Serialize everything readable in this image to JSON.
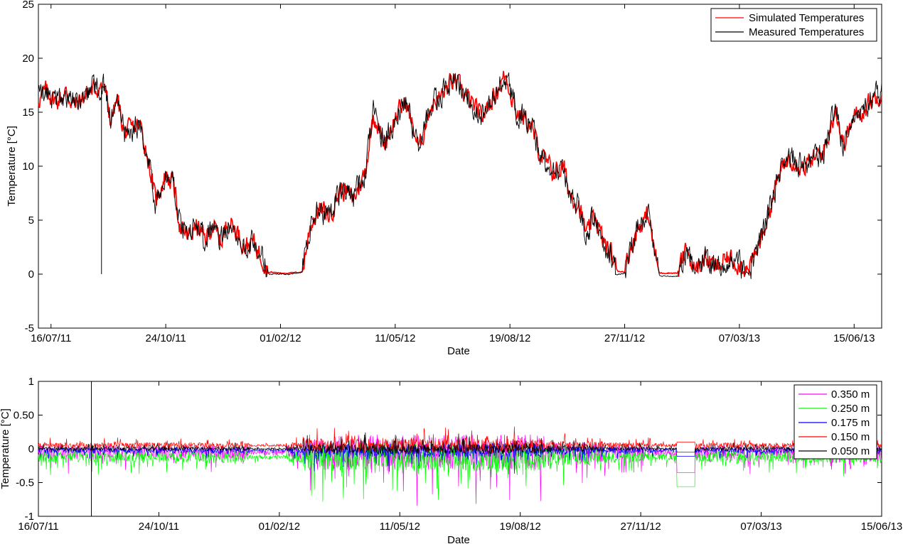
{
  "chart_data": [
    {
      "type": "line",
      "xlabel": "Date",
      "ylabel": "Temperature [°C]",
      "ylim": [
        -5,
        25
      ],
      "yticks": [
        -5,
        0,
        5,
        10,
        15,
        20,
        25
      ],
      "xlim": [
        "2011-07-05",
        "2013-07-09"
      ],
      "xticks": [
        "2011-07-16",
        "2011-10-24",
        "2012-02-01",
        "2012-05-11",
        "2012-08-19",
        "2012-11-27",
        "2013-03-07",
        "2013-06-15"
      ],
      "xtick_labels": [
        "16/07/11",
        "24/10/11",
        "01/02/12",
        "11/05/12",
        "19/08/12",
        "27/11/12",
        "07/03/13",
        "15/06/13"
      ],
      "grid": false,
      "legend": "top-right",
      "series": [
        {
          "name": "Simulated Temperatures",
          "color": "#ff0000",
          "noise": 0.8,
          "points": [
            [
              "2011-07-05",
              16.2
            ],
            [
              "2011-07-12",
              17.0
            ],
            [
              "2011-07-20",
              16.0
            ],
            [
              "2011-07-29",
              16.8
            ],
            [
              "2011-08-06",
              15.6
            ],
            [
              "2011-08-14",
              16.5
            ],
            [
              "2011-08-23",
              17.2
            ],
            [
              "2011-08-31",
              17.5
            ],
            [
              "2011-09-06",
              14.2
            ],
            [
              "2011-09-12",
              16.2
            ],
            [
              "2011-09-18",
              13.0
            ],
            [
              "2011-09-25",
              13.5
            ],
            [
              "2011-10-02",
              13.8
            ],
            [
              "2011-10-09",
              10.5
            ],
            [
              "2011-10-15",
              6.8
            ],
            [
              "2011-10-24",
              9.2
            ],
            [
              "2011-10-31",
              8.4
            ],
            [
              "2011-11-06",
              4.0
            ],
            [
              "2011-11-13",
              3.5
            ],
            [
              "2011-11-20",
              4.5
            ],
            [
              "2011-11-27",
              3.2
            ],
            [
              "2011-12-04",
              4.5
            ],
            [
              "2011-12-11",
              3.0
            ],
            [
              "2011-12-18",
              5.0
            ],
            [
              "2011-12-25",
              4.0
            ],
            [
              "2012-01-01",
              2.5
            ],
            [
              "2012-01-08",
              3.0
            ],
            [
              "2012-01-15",
              1.8
            ],
            [
              "2012-01-22",
              0.2
            ],
            [
              "2012-02-01",
              0.1
            ],
            [
              "2012-02-10",
              0.1
            ],
            [
              "2012-02-20",
              0.2
            ],
            [
              "2012-02-27",
              4.5
            ],
            [
              "2012-03-05",
              6.0
            ],
            [
              "2012-03-15",
              5.5
            ],
            [
              "2012-03-25",
              8.0
            ],
            [
              "2012-04-05",
              7.0
            ],
            [
              "2012-04-15",
              9.5
            ],
            [
              "2012-04-22",
              15.0
            ],
            [
              "2012-05-01",
              12.0
            ],
            [
              "2012-05-11",
              14.5
            ],
            [
              "2012-05-20",
              16.0
            ],
            [
              "2012-06-01",
              11.5
            ],
            [
              "2012-06-10",
              15.5
            ],
            [
              "2012-06-20",
              16.5
            ],
            [
              "2012-07-01",
              18.0
            ],
            [
              "2012-07-15",
              16.0
            ],
            [
              "2012-07-25",
              14.5
            ],
            [
              "2012-08-05",
              16.5
            ],
            [
              "2012-08-15",
              18.5
            ],
            [
              "2012-08-25",
              15.0
            ],
            [
              "2012-09-05",
              14.0
            ],
            [
              "2012-09-15",
              11.0
            ],
            [
              "2012-09-25",
              9.5
            ],
            [
              "2012-10-05",
              9.8
            ],
            [
              "2012-10-10",
              7.5
            ],
            [
              "2012-10-18",
              6.5
            ],
            [
              "2012-10-25",
              3.5
            ],
            [
              "2012-11-01",
              5.5
            ],
            [
              "2012-11-08",
              3.0
            ],
            [
              "2012-11-15",
              2.0
            ],
            [
              "2012-11-20",
              0.3
            ],
            [
              "2012-11-27",
              0.2
            ],
            [
              "2012-12-02",
              2.5
            ],
            [
              "2012-12-10",
              4.5
            ],
            [
              "2012-12-18",
              5.5
            ],
            [
              "2012-12-23",
              2.0
            ],
            [
              "2012-12-27",
              0.1
            ],
            [
              "2013-01-05",
              0.1
            ],
            [
              "2013-01-12",
              0.1
            ],
            [
              "2013-01-20",
              2.5
            ],
            [
              "2013-01-27",
              0.2
            ],
            [
              "2013-02-05",
              1.5
            ],
            [
              "2013-02-15",
              0.5
            ],
            [
              "2013-02-25",
              1.5
            ],
            [
              "2013-03-07",
              1.0
            ],
            [
              "2013-03-15",
              0.3
            ],
            [
              "2013-03-25",
              3.0
            ],
            [
              "2013-04-01",
              5.5
            ],
            [
              "2013-04-10",
              9.0
            ],
            [
              "2013-04-20",
              11.0
            ],
            [
              "2013-05-01",
              10.0
            ],
            [
              "2013-05-10",
              10.5
            ],
            [
              "2013-05-20",
              11.5
            ],
            [
              "2013-05-30",
              15.5
            ],
            [
              "2013-06-05",
              12.0
            ],
            [
              "2013-06-15",
              14.5
            ],
            [
              "2013-06-25",
              15.5
            ],
            [
              "2013-07-05",
              16.5
            ],
            [
              "2013-07-09",
              17.0
            ]
          ]
        },
        {
          "name": "Measured Temperatures",
          "color": "#000000",
          "noise": 1.0,
          "points": [
            [
              "2011-07-05",
              16.2
            ],
            [
              "2011-07-12",
              17.0
            ],
            [
              "2011-07-20",
              16.0
            ],
            [
              "2011-07-29",
              16.8
            ],
            [
              "2011-08-06",
              15.6
            ],
            [
              "2011-08-14",
              16.5
            ],
            [
              "2011-08-23",
              17.2
            ],
            [
              "2011-08-31",
              17.5
            ],
            [
              "2011-09-06",
              14.2
            ],
            [
              "2011-09-12",
              16.2
            ],
            [
              "2011-09-18",
              13.0
            ],
            [
              "2011-09-25",
              13.5
            ],
            [
              "2011-10-02",
              13.8
            ],
            [
              "2011-10-09",
              10.5
            ],
            [
              "2011-10-15",
              6.8
            ],
            [
              "2011-10-24",
              9.2
            ],
            [
              "2011-10-31",
              8.4
            ],
            [
              "2011-11-06",
              4.0
            ],
            [
              "2011-11-13",
              3.5
            ],
            [
              "2011-11-20",
              4.5
            ],
            [
              "2011-11-27",
              3.2
            ],
            [
              "2011-12-04",
              4.5
            ],
            [
              "2011-12-11",
              3.0
            ],
            [
              "2011-12-18",
              5.0
            ],
            [
              "2011-12-25",
              4.0
            ],
            [
              "2012-01-01",
              2.5
            ],
            [
              "2012-01-08",
              3.0
            ],
            [
              "2012-01-15",
              1.8
            ],
            [
              "2012-01-22",
              0.0
            ],
            [
              "2012-02-01",
              0.0
            ],
            [
              "2012-02-10",
              0.0
            ],
            [
              "2012-02-20",
              0.2
            ],
            [
              "2012-02-27",
              4.5
            ],
            [
              "2012-03-05",
              6.0
            ],
            [
              "2012-03-15",
              5.5
            ],
            [
              "2012-03-25",
              8.0
            ],
            [
              "2012-04-05",
              7.0
            ],
            [
              "2012-04-15",
              9.5
            ],
            [
              "2012-04-22",
              15.0
            ],
            [
              "2012-05-01",
              12.0
            ],
            [
              "2012-05-11",
              14.5
            ],
            [
              "2012-05-20",
              16.0
            ],
            [
              "2012-06-01",
              11.5
            ],
            [
              "2012-06-10",
              15.5
            ],
            [
              "2012-06-20",
              16.5
            ],
            [
              "2012-07-01",
              18.0
            ],
            [
              "2012-07-15",
              16.0
            ],
            [
              "2012-07-25",
              14.5
            ],
            [
              "2012-08-05",
              16.5
            ],
            [
              "2012-08-15",
              18.5
            ],
            [
              "2012-08-25",
              15.0
            ],
            [
              "2012-09-05",
              14.0
            ],
            [
              "2012-09-15",
              11.0
            ],
            [
              "2012-09-25",
              9.5
            ],
            [
              "2012-10-05",
              9.8
            ],
            [
              "2012-10-10",
              7.5
            ],
            [
              "2012-10-18",
              6.5
            ],
            [
              "2012-10-25",
              3.5
            ],
            [
              "2012-11-01",
              5.5
            ],
            [
              "2012-11-08",
              3.0
            ],
            [
              "2012-11-15",
              2.0
            ],
            [
              "2012-11-20",
              0.0
            ],
            [
              "2012-11-27",
              0.0
            ],
            [
              "2012-12-02",
              2.5
            ],
            [
              "2012-12-10",
              4.5
            ],
            [
              "2012-12-18",
              5.5
            ],
            [
              "2012-12-23",
              2.0
            ],
            [
              "2012-12-27",
              -0.2
            ],
            [
              "2013-01-05",
              -0.2
            ],
            [
              "2013-01-12",
              -0.2
            ],
            [
              "2013-01-20",
              2.5
            ],
            [
              "2013-01-27",
              0.0
            ],
            [
              "2013-02-05",
              1.5
            ],
            [
              "2013-02-15",
              0.3
            ],
            [
              "2013-02-25",
              1.5
            ],
            [
              "2013-03-07",
              1.0
            ],
            [
              "2013-03-15",
              0.0
            ],
            [
              "2013-03-25",
              3.0
            ],
            [
              "2013-04-01",
              5.5
            ],
            [
              "2013-04-10",
              9.0
            ],
            [
              "2013-04-20",
              11.0
            ],
            [
              "2013-05-01",
              10.0
            ],
            [
              "2013-05-10",
              10.5
            ],
            [
              "2013-05-20",
              11.5
            ],
            [
              "2013-05-30",
              15.5
            ],
            [
              "2013-06-05",
              12.0
            ],
            [
              "2013-06-15",
              14.5
            ],
            [
              "2013-06-25",
              15.5
            ],
            [
              "2013-07-05",
              16.5
            ],
            [
              "2013-07-09",
              17.0
            ]
          ],
          "spikes": [
            [
              "2011-08-29",
              0
            ]
          ]
        }
      ]
    },
    {
      "type": "line",
      "xlabel": "Date",
      "ylabel": "Temperature [°C]",
      "ylim": [
        -1,
        1
      ],
      "yticks": [
        -1,
        -0.5,
        0,
        0.5,
        1
      ],
      "ytick_labels": [
        "-1",
        "-0.5",
        "0",
        "0.50",
        "1"
      ],
      "xlim": [
        "2011-07-16",
        "2013-06-15"
      ],
      "xticks": [
        "2011-07-16",
        "2011-10-24",
        "2012-02-01",
        "2012-05-11",
        "2012-08-19",
        "2012-11-27",
        "2013-03-07",
        "2013-06-15"
      ],
      "xtick_labels": [
        "16/07/11",
        "24/10/11",
        "01/02/12",
        "11/05/12",
        "19/08/12",
        "27/11/12",
        "07/03/13",
        "15/06/13"
      ],
      "grid": false,
      "legend": "top-right",
      "series": [
        {
          "name": "0.350 m",
          "color": "#ff00ff",
          "base": -0.05,
          "amp": 0.35
        },
        {
          "name": "0.250 m",
          "color": "#00ff00",
          "base": -0.12,
          "amp": 0.28
        },
        {
          "name": "0.175 m",
          "color": "#0000ff",
          "base": -0.02,
          "amp": 0.14
        },
        {
          "name": "0.150 m",
          "color": "#ff0000",
          "base": 0.05,
          "amp": 0.14
        },
        {
          "name": "0.050 m",
          "color": "#000000",
          "base": 0.0,
          "amp": 0.1,
          "spikes": [
            [
              "2011-08-29",
              1
            ]
          ]
        }
      ]
    }
  ]
}
